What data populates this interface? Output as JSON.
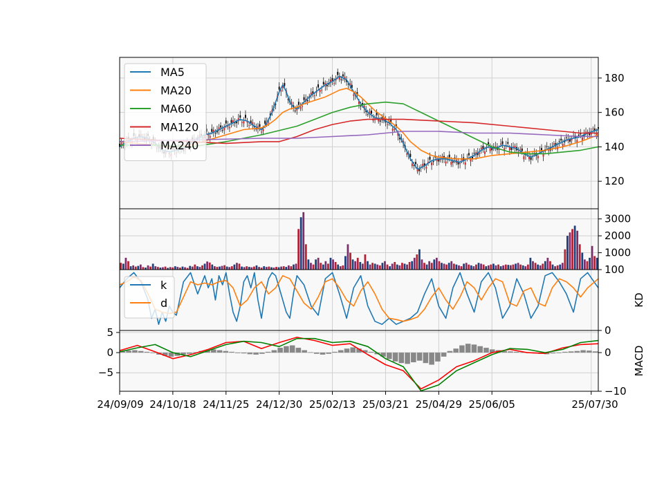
{
  "chart_data": [
    {
      "panel": "price",
      "type": "candlestick+line",
      "ylim": [
        104,
        192
      ],
      "yticks": [
        120,
        140,
        160,
        180
      ],
      "legend_placement": "upper-left",
      "grid": true,
      "series": [
        {
          "name": "MA5",
          "color": "#1f77b4",
          "x": [
            0,
            4,
            8,
            12,
            16,
            20,
            24,
            28,
            32,
            36,
            40,
            44,
            48,
            52,
            56,
            60,
            64,
            68,
            72,
            76,
            80,
            82,
            84,
            86,
            88,
            90,
            92,
            94,
            96,
            98,
            100,
            102,
            104,
            108,
            112,
            116,
            120,
            124,
            128,
            132,
            136,
            140,
            144,
            148,
            152,
            156,
            160,
            164,
            168,
            172,
            176,
            180,
            184,
            188,
            192,
            196,
            200,
            204,
            208,
            212,
            216,
            220,
            224,
            228,
            232,
            236,
            240,
            244,
            248,
            252,
            256,
            260,
            264,
            270
          ],
          "y": [
            140,
            143,
            145,
            146,
            145,
            142,
            138,
            137,
            138,
            139,
            142,
            145,
            147,
            148,
            150,
            152,
            154,
            156,
            155,
            152,
            150,
            152,
            156,
            160,
            166,
            172,
            176,
            172,
            166,
            163,
            162,
            164,
            166,
            170,
            173,
            176,
            178,
            181,
            179,
            172,
            165,
            160,
            157,
            156,
            154,
            150,
            142,
            133,
            127,
            129,
            132,
            133,
            133,
            132,
            131,
            133,
            135,
            138,
            140,
            139,
            141,
            140,
            139,
            136,
            134,
            136,
            138,
            140,
            142,
            144,
            145,
            146,
            148,
            150
          ]
        },
        {
          "name": "MA20",
          "color": "#ff7f0e",
          "x": [
            0,
            10,
            20,
            30,
            40,
            50,
            60,
            70,
            80,
            84,
            88,
            92,
            96,
            100,
            104,
            110,
            116,
            120,
            124,
            128,
            132,
            136,
            140,
            144,
            148,
            152,
            156,
            160,
            164,
            170,
            176,
            180,
            190,
            200,
            210,
            220,
            230,
            240,
            250,
            260,
            270
          ],
          "y": [
            143,
            142,
            141,
            140,
            141,
            144,
            147,
            150,
            151,
            153,
            156,
            160,
            162,
            163,
            165,
            167,
            169,
            171,
            173,
            174,
            172,
            169,
            165,
            161,
            158,
            155,
            152,
            148,
            143,
            138,
            135,
            134,
            133,
            133,
            135,
            136,
            137,
            138,
            140,
            143,
            147
          ]
        },
        {
          "name": "MA60",
          "color": "#2ca02c",
          "x": [
            0,
            20,
            40,
            60,
            80,
            100,
            110,
            120,
            130,
            140,
            150,
            160,
            170,
            180,
            190,
            200,
            210,
            220,
            230,
            240,
            250,
            260,
            270
          ],
          "y": [
            141,
            141,
            140,
            143,
            147,
            152,
            156,
            160,
            163,
            165,
            166,
            165,
            160,
            155,
            150,
            145,
            140,
            137,
            136,
            136,
            137,
            138,
            140
          ]
        },
        {
          "name": "MA120",
          "color": "#d62728",
          "x": [
            0,
            20,
            40,
            60,
            80,
            90,
            100,
            110,
            120,
            130,
            140,
            160,
            180,
            200,
            220,
            240,
            260,
            270
          ],
          "y": [
            145,
            144,
            143,
            142,
            143,
            143,
            146,
            150,
            153,
            155,
            156,
            156,
            155,
            154,
            152,
            150,
            148,
            148
          ]
        },
        {
          "name": "MA240",
          "color": "#9467bd",
          "x": [
            0,
            40,
            80,
            100,
            120,
            140,
            160,
            180,
            200,
            220,
            240,
            260,
            270
          ],
          "y": [
            143,
            144,
            145,
            145,
            146,
            147,
            149,
            149,
            148,
            148,
            147,
            146,
            146
          ]
        }
      ]
    },
    {
      "panel": "volume",
      "type": "bar",
      "ylim": [
        0,
        3600
      ],
      "yticks": [
        1000,
        2000,
        3000
      ],
      "values": [
        400,
        350,
        700,
        500,
        200,
        250,
        180,
        220,
        300,
        150,
        120,
        250,
        180,
        350,
        200,
        160,
        120,
        140,
        180,
        100,
        150,
        130,
        200,
        160,
        120,
        180,
        140,
        100,
        220,
        180,
        300,
        200,
        160,
        250,
        350,
        480,
        420,
        300,
        200,
        160,
        180,
        220,
        260,
        180,
        150,
        200,
        300,
        400,
        350,
        180,
        150,
        200,
        160,
        140,
        180,
        250,
        160,
        120,
        200,
        160,
        180,
        140,
        120,
        160,
        140,
        180,
        200,
        160,
        250,
        200,
        300,
        350,
        2400,
        3100,
        3400,
        1500,
        600,
        400,
        300,
        600,
        700,
        400,
        300,
        500,
        350,
        700,
        600,
        450,
        300,
        200,
        250,
        800,
        1500,
        1000,
        600,
        500,
        700,
        450,
        350,
        900,
        500,
        300,
        400,
        350,
        300,
        250,
        400,
        500,
        300,
        200,
        350,
        450,
        300,
        250,
        400,
        350,
        300,
        450,
        500,
        700,
        900,
        1200,
        600,
        400,
        300,
        500,
        400,
        600,
        700,
        500,
        400,
        350,
        300,
        400,
        500,
        350,
        300,
        250,
        200,
        350,
        400,
        300,
        250,
        200,
        300,
        400,
        350,
        300,
        200,
        250,
        300,
        350,
        250,
        300,
        200,
        250,
        300,
        280,
        260,
        300,
        350,
        400,
        300,
        250,
        200,
        300,
        700,
        500,
        400,
        300,
        250,
        350,
        500,
        700,
        500,
        300,
        200,
        250,
        300,
        400,
        1200,
        2000,
        2200,
        2400,
        2600,
        2300,
        1500,
        1000,
        600,
        500,
        700,
        1400,
        800,
        700
      ]
    },
    {
      "panel": "kd",
      "type": "line",
      "ylim": [
        0,
        100
      ],
      "yticks": [
        0,
        100
      ],
      "ylabel": "KD",
      "legend_placement": "upper-left",
      "series": [
        {
          "name": "k",
          "color": "#1f77b4",
          "x": [
            0,
            4,
            8,
            12,
            16,
            18,
            20,
            22,
            24,
            26,
            28,
            30,
            32,
            36,
            40,
            44,
            48,
            50,
            52,
            54,
            56,
            58,
            60,
            62,
            64,
            66,
            68,
            70,
            72,
            74,
            76,
            78,
            80,
            82,
            84,
            86,
            88,
            90,
            92,
            94,
            96,
            98,
            100,
            104,
            108,
            112,
            116,
            120,
            124,
            128,
            132,
            136,
            140,
            144,
            148,
            152,
            156,
            160,
            164,
            168,
            172,
            176,
            180,
            184,
            188,
            192,
            196,
            200,
            204,
            208,
            212,
            216,
            220,
            224,
            228,
            232,
            236,
            240,
            244,
            248,
            252,
            256,
            260,
            264,
            270
          ],
          "y": [
            70,
            85,
            95,
            80,
            50,
            20,
            35,
            10,
            30,
            15,
            40,
            30,
            25,
            80,
            95,
            60,
            90,
            70,
            85,
            50,
            90,
            75,
            95,
            60,
            30,
            15,
            40,
            80,
            90,
            70,
            95,
            50,
            20,
            60,
            85,
            95,
            90,
            70,
            50,
            30,
            20,
            60,
            90,
            75,
            40,
            25,
            85,
            95,
            60,
            20,
            70,
            90,
            40,
            15,
            10,
            20,
            10,
            15,
            20,
            30,
            60,
            85,
            40,
            20,
            70,
            95,
            60,
            30,
            80,
            95,
            70,
            20,
            40,
            85,
            60,
            20,
            40,
            90,
            95,
            80,
            60,
            30,
            85,
            95,
            70
          ]
        },
        {
          "name": "d",
          "color": "#ff7f0e",
          "x": [
            0,
            4,
            8,
            12,
            16,
            20,
            24,
            28,
            32,
            36,
            40,
            44,
            48,
            52,
            56,
            60,
            64,
            68,
            72,
            76,
            80,
            84,
            88,
            92,
            96,
            100,
            104,
            108,
            112,
            116,
            120,
            124,
            128,
            132,
            136,
            140,
            144,
            148,
            152,
            156,
            160,
            164,
            168,
            172,
            176,
            180,
            184,
            188,
            192,
            196,
            200,
            204,
            208,
            212,
            216,
            220,
            224,
            228,
            232,
            236,
            240,
            244,
            248,
            252,
            256,
            260,
            264,
            270
          ],
          "y": [
            75,
            80,
            88,
            82,
            60,
            35,
            30,
            28,
            30,
            55,
            80,
            75,
            78,
            75,
            80,
            82,
            70,
            40,
            50,
            70,
            80,
            60,
            70,
            90,
            85,
            65,
            45,
            35,
            55,
            80,
            85,
            70,
            50,
            40,
            65,
            80,
            60,
            35,
            20,
            18,
            15,
            18,
            22,
            35,
            55,
            70,
            50,
            35,
            55,
            80,
            70,
            50,
            70,
            85,
            80,
            45,
            40,
            65,
            70,
            45,
            40,
            70,
            85,
            80,
            70,
            55,
            70,
            85
          ]
        }
      ]
    },
    {
      "panel": "macd",
      "type": "bar+line",
      "ylim": [
        -9.6,
        5.5
      ],
      "yticks_left": [
        5,
        0,
        -5
      ],
      "yticks_right": [
        0,
        -10
      ],
      "ylabel": "MACD",
      "x_ticklabels": [
        "24/09/09",
        "24/10/18",
        "24/11/25",
        "24/12/30",
        "25/02/13",
        "25/03/21",
        "25/04/29",
        "25/06/05",
        "25/07/30"
      ],
      "histogram": [
        0.3,
        0.5,
        0.6,
        0.4,
        0.2,
        -0.1,
        -0.5,
        -0.8,
        -1.0,
        -0.8,
        -0.5,
        -0.3,
        0.1,
        0.4,
        0.6,
        0.8,
        0.6,
        0.4,
        0.2,
        0.0,
        -0.2,
        -0.4,
        -0.5,
        -0.3,
        0.2,
        0.6,
        1.2,
        1.6,
        1.8,
        1.2,
        0.6,
        0.1,
        -0.3,
        -0.5,
        -0.3,
        0.2,
        0.6,
        1.0,
        1.3,
        1.0,
        0.6,
        0.2,
        -0.4,
        -1.0,
        -1.6,
        -2.2,
        -2.6,
        -2.8,
        -2.4,
        -2.0,
        -2.6,
        -3.0,
        -2.2,
        -1.0,
        0.4,
        1.0,
        1.8,
        2.2,
        2.0,
        1.6,
        1.2,
        0.8,
        0.6,
        0.4,
        0.3,
        0.2,
        0.1,
        0.0,
        -0.2,
        -0.3,
        -0.4,
        -0.2,
        0.0,
        0.2,
        0.3,
        0.4,
        0.6,
        0.5,
        0.3
      ],
      "series": [
        {
          "name": "",
          "color": "#ff0000",
          "x": [
            0,
            10,
            20,
            30,
            40,
            50,
            60,
            70,
            80,
            90,
            100,
            110,
            120,
            130,
            140,
            150,
            160,
            170,
            180,
            190,
            200,
            210,
            220,
            230,
            240,
            250,
            260,
            270
          ],
          "y": [
            0.5,
            1.8,
            0.2,
            -1.5,
            -0.5,
            0.8,
            2.5,
            2.8,
            1.0,
            2.5,
            3.8,
            3.0,
            1.8,
            2.2,
            -0.5,
            -3.0,
            -4.5,
            -9.0,
            -6.8,
            -3.5,
            -2.0,
            0.0,
            0.8,
            0.0,
            -0.2,
            1.2,
            2.0,
            2.2
          ]
        },
        {
          "name": "",
          "color": "#008000",
          "x": [
            0,
            10,
            20,
            30,
            40,
            50,
            60,
            70,
            80,
            90,
            100,
            110,
            120,
            130,
            140,
            150,
            160,
            170,
            180,
            190,
            200,
            210,
            220,
            230,
            240,
            250,
            260,
            270
          ],
          "y": [
            0.2,
            1.2,
            2.0,
            0.0,
            -1.0,
            0.5,
            2.0,
            2.8,
            2.5,
            1.5,
            3.5,
            3.5,
            2.5,
            2.8,
            1.5,
            -1.5,
            -3.5,
            -9.5,
            -8.0,
            -4.5,
            -2.5,
            -0.5,
            1.0,
            0.8,
            0.0,
            0.8,
            2.5,
            3.0
          ]
        }
      ]
    }
  ]
}
